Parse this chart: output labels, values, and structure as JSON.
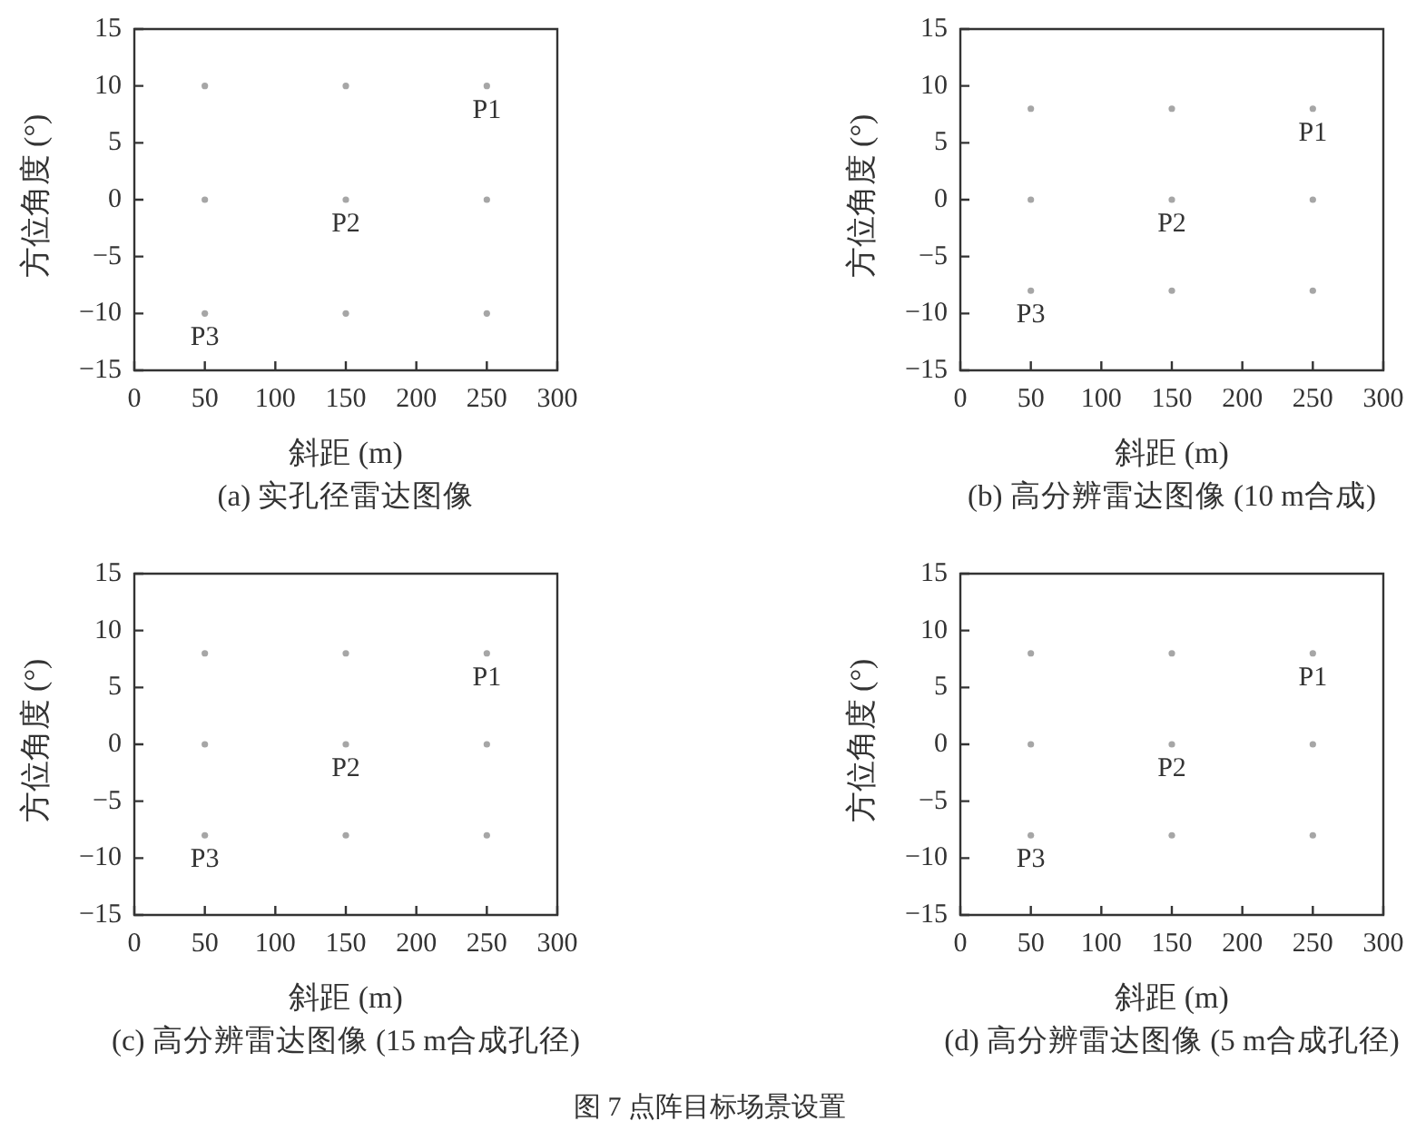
{
  "chart_data": [
    {
      "type": "scatter",
      "title": "(a) 实孔径雷达图像",
      "xlabel": "斜距 (m)",
      "ylabel": "方位角度 (°)",
      "x": [
        50,
        150,
        250,
        50,
        150,
        250,
        50,
        150,
        250
      ],
      "values": [
        10,
        10,
        10,
        0,
        0,
        0,
        -10,
        -10,
        -10
      ],
      "color": "#a6a6a6",
      "marker": "circle",
      "xlim": [
        0,
        300
      ],
      "xticks": [
        0,
        50,
        100,
        150,
        200,
        250,
        300
      ],
      "ylim": [
        -15,
        15
      ],
      "yticks": [
        {
          "value": -15,
          "label": "−15"
        },
        {
          "value": -10,
          "label": "−10"
        },
        {
          "value": -5,
          "label": "−5"
        },
        0,
        5,
        10,
        15
      ],
      "annotations": [
        {
          "text": "P1",
          "x": 250,
          "y": 10
        },
        {
          "text": "P2",
          "x": 150,
          "y": 0
        },
        {
          "text": "P3",
          "x": 50,
          "y": -10
        }
      ]
    },
    {
      "type": "scatter",
      "title": "(b) 高分辨雷达图像 (10 m合成)",
      "xlabel": "斜距 (m)",
      "ylabel": "方位角度 (°)",
      "x": [
        50,
        150,
        250,
        50,
        150,
        250,
        50,
        150,
        250
      ],
      "values": [
        8,
        8,
        8,
        0,
        0,
        0,
        -8,
        -8,
        -8
      ],
      "color": "#a6a6a6",
      "marker": "circle",
      "xlim": [
        0,
        300
      ],
      "xticks": [
        0,
        50,
        100,
        150,
        200,
        250,
        300
      ],
      "ylim": [
        -15,
        15
      ],
      "yticks": [
        {
          "value": -15,
          "label": "−15"
        },
        {
          "value": -10,
          "label": "−10"
        },
        {
          "value": -5,
          "label": "−5"
        },
        0,
        5,
        10,
        15
      ],
      "annotations": [
        {
          "text": "P1",
          "x": 250,
          "y": 8
        },
        {
          "text": "P2",
          "x": 150,
          "y": 0
        },
        {
          "text": "P3",
          "x": 50,
          "y": -8
        }
      ]
    },
    {
      "type": "scatter",
      "title": "(c) 高分辨雷达图像 (15 m合成孔径)",
      "xlabel": "斜距 (m)",
      "ylabel": "方位角度 (°)",
      "x": [
        50,
        150,
        250,
        50,
        150,
        250,
        50,
        150,
        250
      ],
      "values": [
        8,
        8,
        8,
        0,
        0,
        0,
        -8,
        -8,
        -8
      ],
      "color": "#a6a6a6",
      "marker": "circle",
      "xlim": [
        0,
        300
      ],
      "xticks": [
        0,
        50,
        100,
        150,
        200,
        250,
        300
      ],
      "ylim": [
        -15,
        15
      ],
      "yticks": [
        {
          "value": -15,
          "label": "−15"
        },
        {
          "value": -10,
          "label": "−10"
        },
        {
          "value": -5,
          "label": "−5"
        },
        0,
        5,
        10,
        15
      ],
      "annotations": [
        {
          "text": "P1",
          "x": 250,
          "y": 8
        },
        {
          "text": "P2",
          "x": 150,
          "y": 0
        },
        {
          "text": "P3",
          "x": 50,
          "y": -8
        }
      ]
    },
    {
      "type": "scatter",
      "title": "(d) 高分辨雷达图像 (5 m合成孔径)",
      "xlabel": "斜距 (m)",
      "ylabel": "方位角度 (°)",
      "x": [
        50,
        150,
        250,
        50,
        150,
        250,
        50,
        150,
        250
      ],
      "values": [
        8,
        8,
        8,
        0,
        0,
        0,
        -8,
        -8,
        -8
      ],
      "color": "#a6a6a6",
      "marker": "circle",
      "xlim": [
        0,
        300
      ],
      "xticks": [
        0,
        50,
        100,
        150,
        200,
        250,
        300
      ],
      "ylim": [
        -15,
        15
      ],
      "yticks": [
        {
          "value": -15,
          "label": "−15"
        },
        {
          "value": -10,
          "label": "−10"
        },
        {
          "value": -5,
          "label": "−5"
        },
        0,
        5,
        10,
        15
      ],
      "annotations": [
        {
          "text": "P1",
          "x": 250,
          "y": 8
        },
        {
          "text": "P2",
          "x": 150,
          "y": 0
        },
        {
          "text": "P3",
          "x": 50,
          "y": -8
        },
        "图 7 点阵目标场景设置"
      ]
    }
  ]
}
